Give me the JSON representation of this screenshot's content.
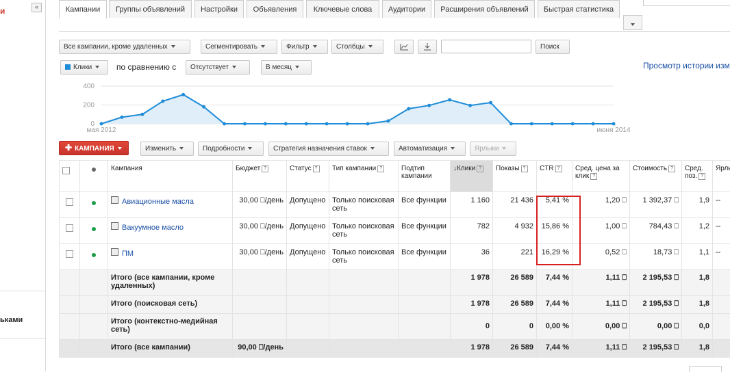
{
  "left_panel": {
    "top_text": "и",
    "bottom_text": "ьками"
  },
  "tabs": [
    {
      "label": "Кампании",
      "active": true
    },
    {
      "label": "Группы объявлений"
    },
    {
      "label": "Настройки"
    },
    {
      "label": "Объявления"
    },
    {
      "label": "Ключевые слова"
    },
    {
      "label": "Аудитории"
    },
    {
      "label": "Расширения объявлений"
    },
    {
      "label": "Быстрая статистика"
    }
  ],
  "toolbar": {
    "filter_campaigns": "Все кампании, кроме удаленных",
    "segment": "Сегментировать",
    "filter": "Фильтр",
    "columns": "Столбцы",
    "search_value": "",
    "search_button": "Поиск"
  },
  "chart_controls": {
    "metric": "Клики",
    "compare_label": "по сравнению с",
    "compare_value": "Отсутствует",
    "period": "В месяц",
    "history_link": "Просмотр истории изм"
  },
  "chart_data": {
    "type": "area",
    "y_ticks": [
      "400",
      "200",
      "0"
    ],
    "ylim": [
      0,
      400
    ],
    "x_start_label": "мая 2012",
    "x_end_label": "июня 2014",
    "values": [
      0,
      70,
      100,
      240,
      310,
      180,
      0,
      0,
      0,
      0,
      0,
      0,
      0,
      0,
      30,
      160,
      195,
      255,
      195,
      225,
      0,
      0,
      0,
      0,
      0,
      0
    ],
    "color": "#1f8cd8"
  },
  "actions": {
    "campaign_button": "КАМПАНИЯ",
    "edit": "Изменить",
    "details": "Подробности",
    "bid_strategy": "Стратегия назначения ставок",
    "automation": "Автоматизация",
    "labels": "Ярлыки"
  },
  "table": {
    "headers": {
      "campaign": "Кампания",
      "budget": "Бюджет",
      "status": "Статус",
      "type": "Тип кампании",
      "subtype": "Подтип кампании",
      "clicks": "Клики",
      "impressions": "Показы",
      "ctr": "CTR",
      "avg_cpc": "Сред. цена за клик",
      "cost": "Стоимость",
      "avg_pos": "Сред. поз.",
      "labels": "Ярлы"
    },
    "rows": [
      {
        "campaign": "Авиационные масла",
        "budget": "30,00 ⎕/день",
        "status": "Допущено",
        "type": "Только поисковая сеть",
        "subtype": "Все функции",
        "clicks": "1 160",
        "impressions": "21 436",
        "ctr": "5,41 %",
        "avg_cpc": "1,20 ⎕",
        "cost": "1 392,37 ⎕",
        "avg_pos": "1,9",
        "labels": "--"
      },
      {
        "campaign": "Вакуумное масло",
        "budget": "30,00 ⎕/день",
        "status": "Допущено",
        "type": "Только поисковая сеть",
        "subtype": "Все функции",
        "clicks": "782",
        "impressions": "4 932",
        "ctr": "15,86 %",
        "avg_cpc": "1,00 ⎕",
        "cost": "784,43 ⎕",
        "avg_pos": "1,2",
        "labels": "--"
      },
      {
        "campaign": "ПМ",
        "budget": "30,00 ⎕/день",
        "status": "Допущено",
        "type": "Только поисковая сеть",
        "subtype": "Все функции",
        "clicks": "36",
        "impressions": "221",
        "ctr": "16,29 %",
        "avg_cpc": "0,52 ⎕",
        "cost": "18,73 ⎕",
        "avg_pos": "1,1",
        "labels": "--"
      }
    ],
    "totals": [
      {
        "label": "Итого (все кампании, кроме удаленных)",
        "budget": "",
        "clicks": "1 978",
        "impressions": "26 589",
        "ctr": "7,44 %",
        "avg_cpc": "1,11 ⎕",
        "cost": "2 195,53 ⎕",
        "avg_pos": "1,8"
      },
      {
        "label": "Итого (поисковая сеть)",
        "budget": "",
        "clicks": "1 978",
        "impressions": "26 589",
        "ctr": "7,44 %",
        "avg_cpc": "1,11 ⎕",
        "cost": "2 195,53 ⎕",
        "avg_pos": "1,8"
      },
      {
        "label": "Итого (контекстно-медийная сеть)",
        "budget": "",
        "clicks": "0",
        "impressions": "0",
        "ctr": "0,00 %",
        "avg_cpc": "0,00 ⎕",
        "cost": "0,00 ⎕",
        "avg_pos": "0,0"
      },
      {
        "label": "Итого (все кампании)",
        "budget": "90,00 ⎕/день",
        "clicks": "1 978",
        "impressions": "26 589",
        "ctr": "7,44 %",
        "avg_cpc": "1,11 ⎕",
        "cost": "2 195,53 ⎕",
        "avg_pos": "1,8"
      }
    ]
  }
}
